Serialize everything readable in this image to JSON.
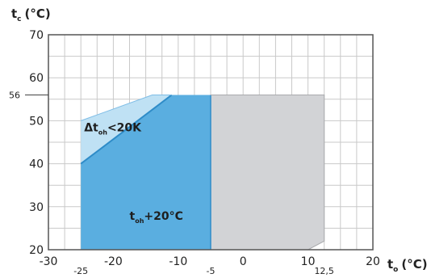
{
  "chart_data": {
    "type": "area",
    "y_axis": {
      "label_main": "t",
      "label_sub": "c",
      "unit": "(°C)",
      "range": [
        20,
        70
      ],
      "ticks": [
        20,
        30,
        40,
        50,
        60,
        70
      ],
      "extra_ticks": [
        56
      ]
    },
    "x_axis": {
      "label_main": "t",
      "label_sub": "o",
      "unit": "(°C)",
      "range": [
        -30,
        20
      ],
      "ticks": [
        -30,
        -20,
        -10,
        0,
        10,
        20
      ],
      "extra_ticks": [
        {
          "value": -25,
          "label": "-25"
        },
        {
          "value": -5,
          "label": "-5"
        },
        {
          "value": 12.5,
          "label": "12,5"
        }
      ]
    },
    "grid": true,
    "regions": [
      {
        "id": "grey",
        "color": "#d2d3d6",
        "points": [
          [
            -5,
            20
          ],
          [
            -5,
            56
          ],
          [
            12.5,
            56
          ],
          [
            12.5,
            22
          ],
          [
            10,
            20
          ]
        ]
      },
      {
        "id": "blue",
        "color": "#5aaee0",
        "points": [
          [
            -25,
            20
          ],
          [
            -25,
            40
          ],
          [
            -11,
            56
          ],
          [
            -5,
            56
          ],
          [
            -5,
            20
          ]
        ]
      },
      {
        "id": "light-blue",
        "color": "#bfe1f4",
        "points": [
          [
            -25,
            40
          ],
          [
            -25,
            50
          ],
          [
            -14,
            56
          ],
          [
            -11,
            56
          ]
        ]
      }
    ],
    "annotations": [
      {
        "id": "superheat-limit",
        "main": "Δt",
        "sub": "oh",
        "rest": "<20K",
        "x": -24.5,
        "y": 47.5
      },
      {
        "id": "superheat",
        "main": "t",
        "sub": "oh",
        "rest": "+20°C",
        "x": -17.5,
        "y": 27
      }
    ]
  }
}
